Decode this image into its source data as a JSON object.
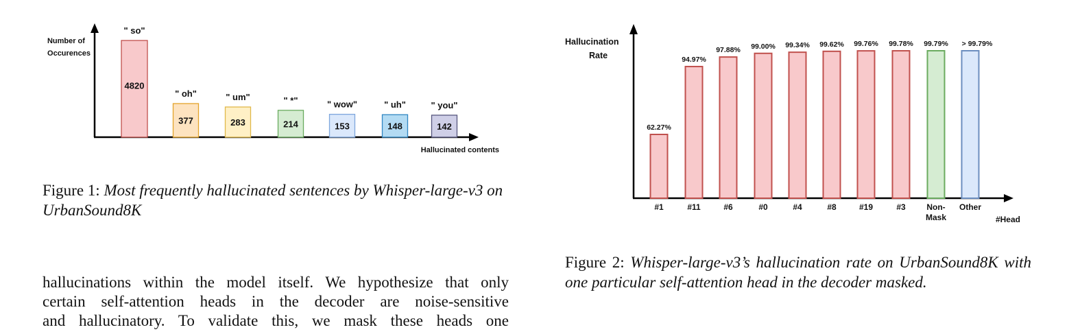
{
  "figure1": {
    "chart_data": {
      "type": "bar",
      "ylabel": [
        "Number of",
        "Occurences"
      ],
      "xlabel": "Hallucinated contents",
      "categories": [
        "\" so\"",
        "\" oh\"",
        "\" um\"",
        "\" *\"",
        "\" wow\"",
        "\" uh\"",
        "\" you\""
      ],
      "values": [
        4820,
        377,
        283,
        214,
        153,
        148,
        142
      ],
      "value_labels": [
        "4820",
        "377",
        "283",
        "214",
        "153",
        "148",
        "142"
      ],
      "colors": [
        {
          "fill": "#f8c9cb",
          "stroke": "#c0504d"
        },
        {
          "fill": "#fde3c0",
          "stroke": "#e3a32a"
        },
        {
          "fill": "#fff0c6",
          "stroke": "#e0b84a"
        },
        {
          "fill": "#d5ecd2",
          "stroke": "#6aab5f"
        },
        {
          "fill": "#dbe8fb",
          "stroke": "#7ea6dd"
        },
        {
          "fill": "#b3dbf3",
          "stroke": "#2f86c2"
        },
        {
          "fill": "#cfcfe7",
          "stroke": "#56567d"
        }
      ],
      "display_scale": "compressed (non-linear bar heights)"
    },
    "caption_prefix": "Figure 1: ",
    "caption_italic": "Most frequently hallucinated sentences by Whisper-large-v3 on UrbanSound8K"
  },
  "figure2": {
    "chart_data": {
      "type": "bar",
      "ylabel": [
        "Hallucination",
        "Rate"
      ],
      "xlabel": "#Head",
      "categories": [
        "#1",
        "#11",
        "#6",
        "#0",
        "#4",
        "#8",
        "#19",
        "#3",
        "Non-Mask",
        "Other"
      ],
      "category_lines": [
        [
          "#1"
        ],
        [
          "#11"
        ],
        [
          "#6"
        ],
        [
          "#0"
        ],
        [
          "#4"
        ],
        [
          "#8"
        ],
        [
          "#19"
        ],
        [
          "#3"
        ],
        [
          "Non-",
          "Mask"
        ],
        [
          "Other"
        ]
      ],
      "values": [
        62.27,
        94.97,
        97.88,
        99.0,
        99.34,
        99.62,
        99.76,
        99.78,
        99.79,
        99.79
      ],
      "value_labels": [
        "62.27%",
        "94.97%",
        "97.88%",
        "99.00%",
        "99.34%",
        "99.62%",
        "99.76%",
        "99.78%",
        "99.79%",
        "> 99.79%"
      ],
      "colors": [
        {
          "fill": "#f8c9cb",
          "stroke": "#c0504d"
        },
        {
          "fill": "#f8c9cb",
          "stroke": "#c0504d"
        },
        {
          "fill": "#f8c9cb",
          "stroke": "#c0504d"
        },
        {
          "fill": "#f8c9cb",
          "stroke": "#c0504d"
        },
        {
          "fill": "#f8c9cb",
          "stroke": "#c0504d"
        },
        {
          "fill": "#f8c9cb",
          "stroke": "#c0504d"
        },
        {
          "fill": "#f8c9cb",
          "stroke": "#c0504d"
        },
        {
          "fill": "#f8c9cb",
          "stroke": "#c0504d"
        },
        {
          "fill": "#d5ecd2",
          "stroke": "#6aab5f"
        },
        {
          "fill": "#dbe8fb",
          "stroke": "#6c8ebf"
        }
      ],
      "display_scale": "y-axis starts near 50%",
      "ylim": [
        50,
        100
      ]
    },
    "caption_prefix": "Figure 2: ",
    "caption_italic": "Whisper-large-v3’s hallucination rate on UrbanSound8K with one particular self-attention head in the decoder masked."
  },
  "body_lines": [
    "hallucinations within the model itself. We hypothesize that only",
    "certain self-attention heads in the decoder are noise-sensitive",
    "and hallucinatory. To validate this, we mask these heads one"
  ]
}
